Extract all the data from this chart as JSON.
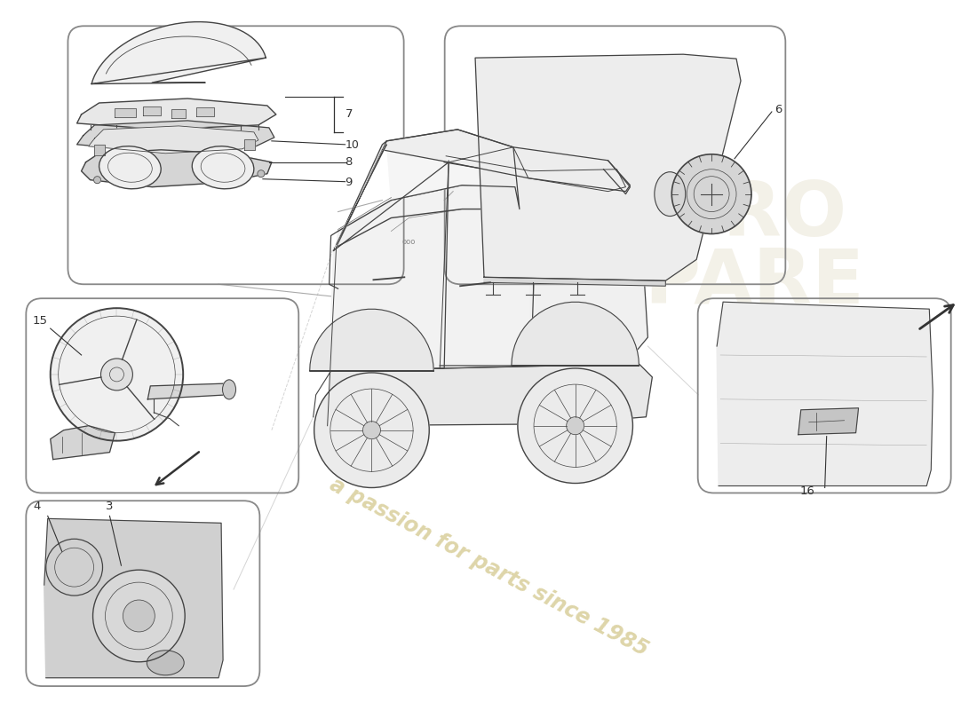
{
  "bg_color": "#ffffff",
  "box_edge_color": "#888888",
  "line_color": "#333333",
  "sketch_color": "#444444",
  "wm_color": "#d8ce9a",
  "wm_text": "a passion for parts since 1985",
  "logo_color": "#ccc098",
  "figsize": [
    11.0,
    8.0
  ],
  "dpi": 100,
  "boxes": {
    "tl": [
      0.068,
      0.6,
      0.345,
      0.365
    ],
    "tr": [
      0.455,
      0.6,
      0.35,
      0.365
    ],
    "ml": [
      0.025,
      0.305,
      0.28,
      0.275
    ],
    "mr": [
      0.715,
      0.305,
      0.26,
      0.275
    ],
    "bl": [
      0.025,
      0.032,
      0.24,
      0.262
    ]
  }
}
